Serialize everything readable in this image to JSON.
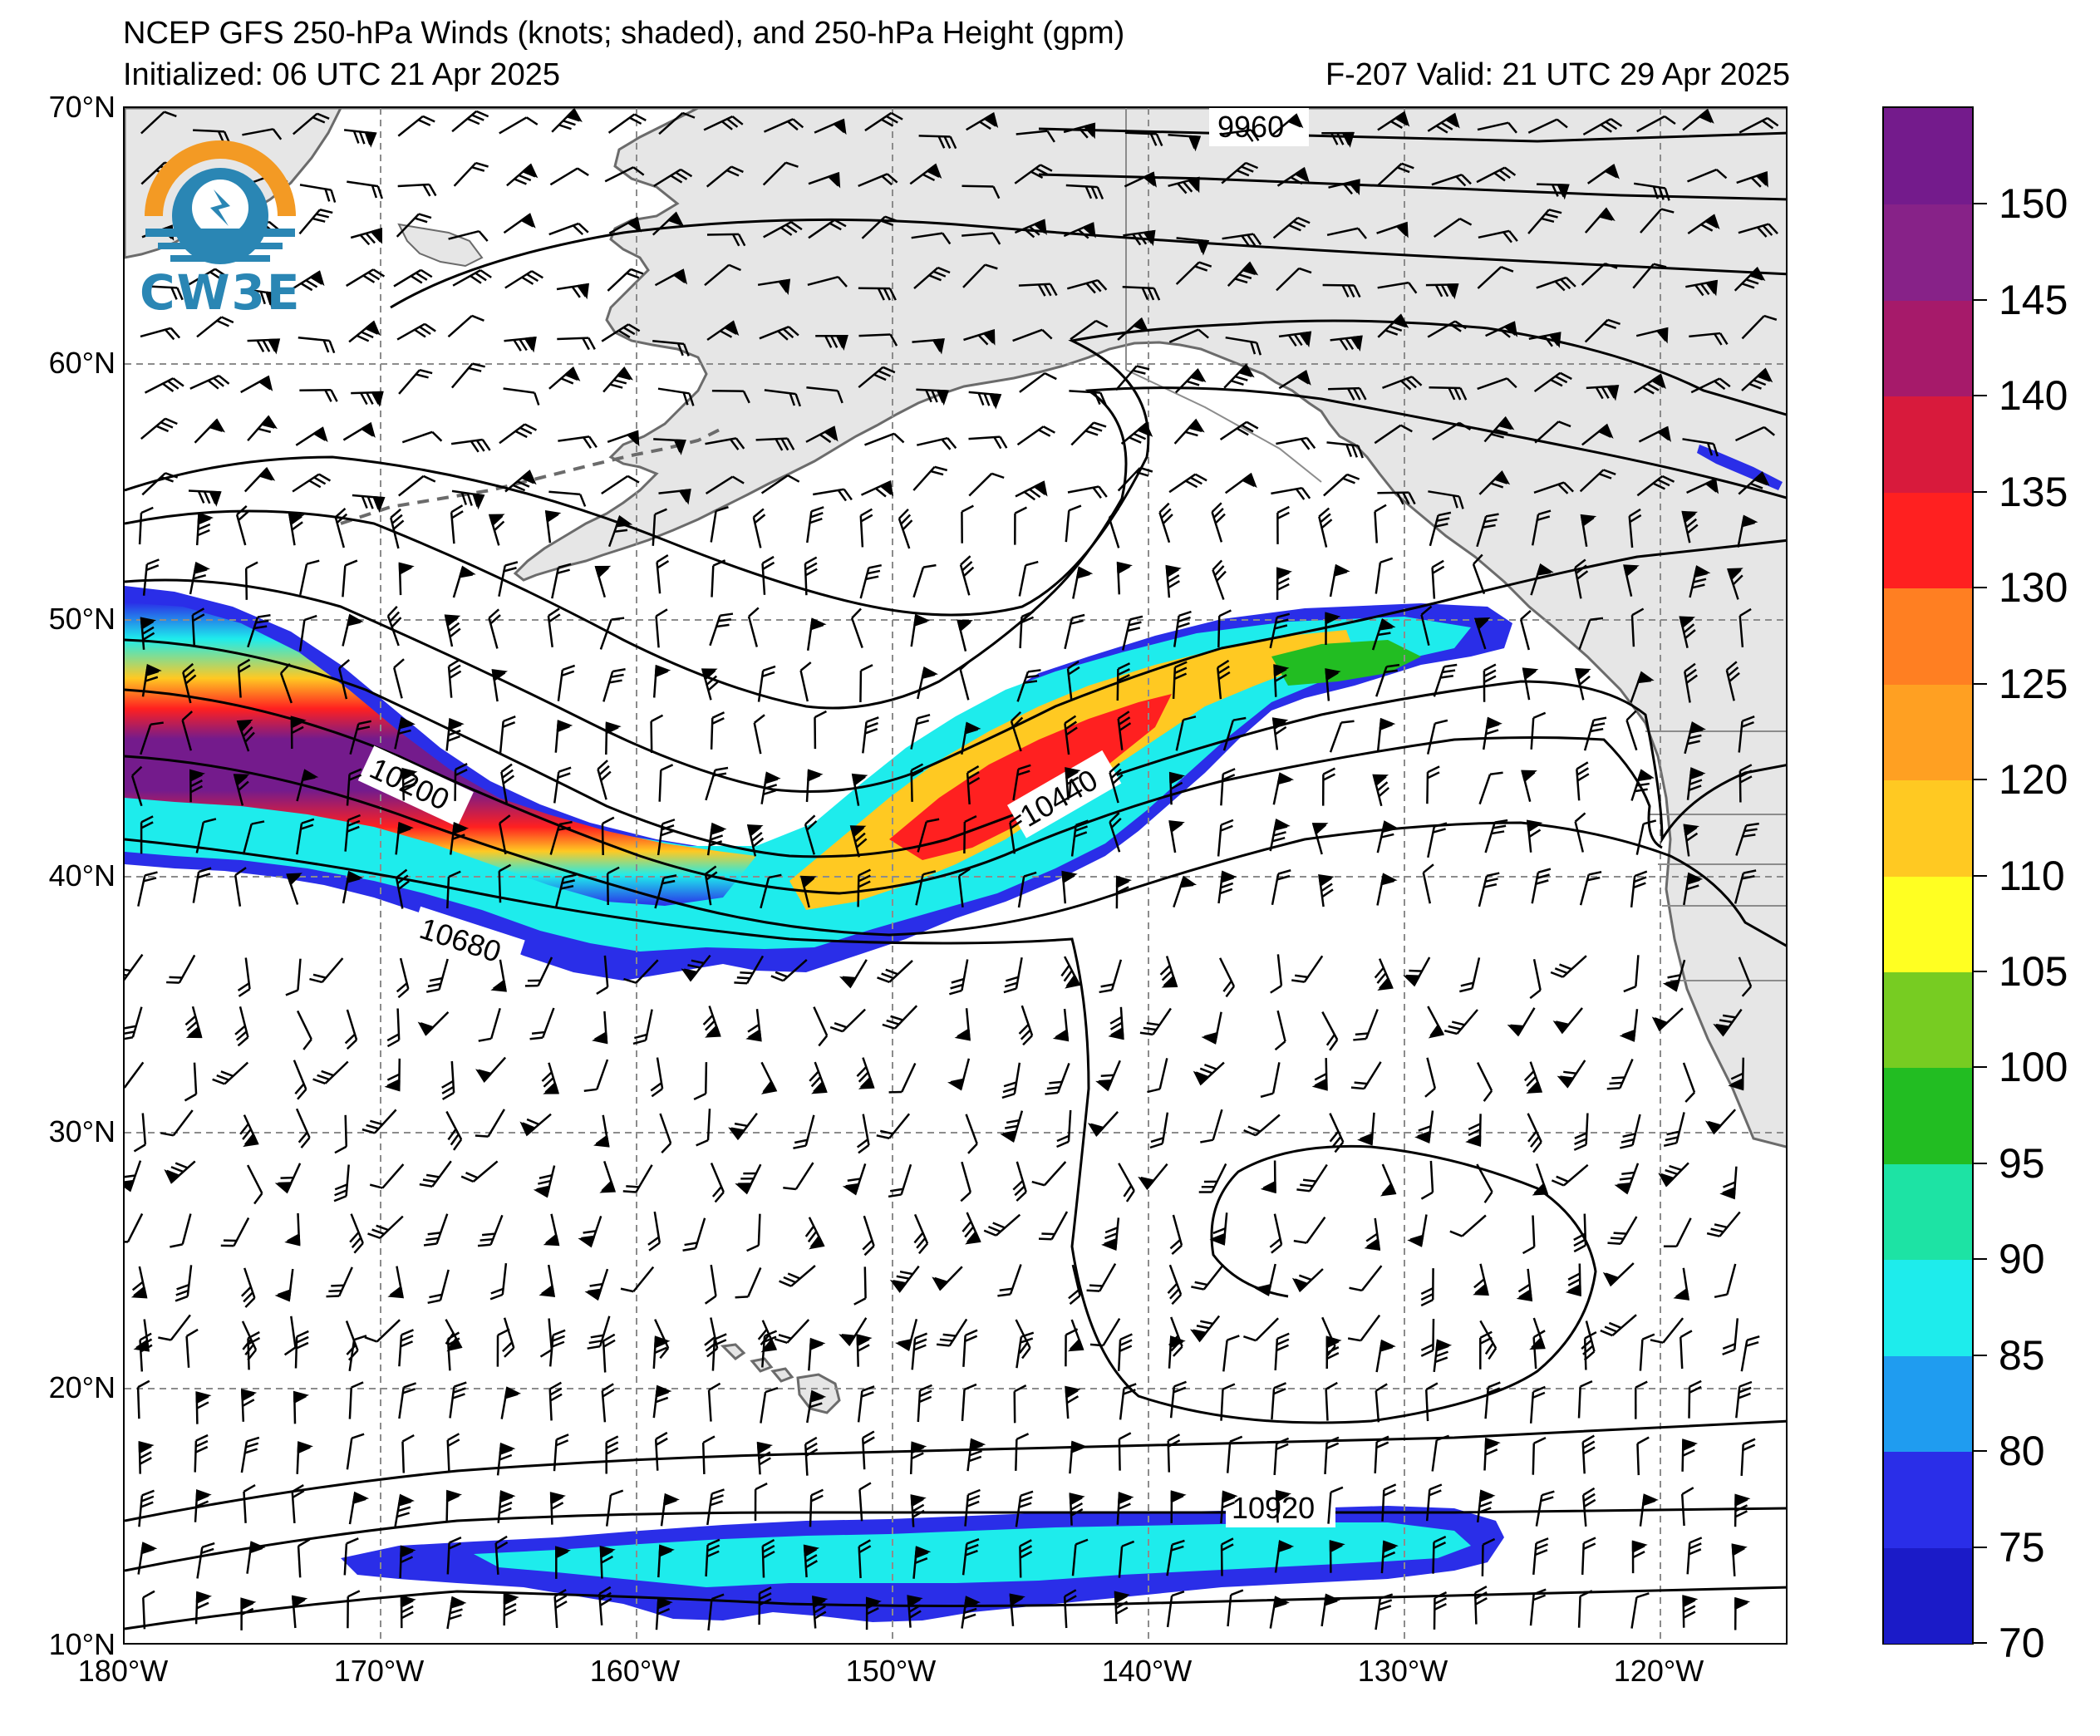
{
  "header": {
    "title": "NCEP GFS 250-hPa Winds (knots; shaded), and 250-hPa Height (gpm)",
    "initialized": "Initialized: 06 UTC 21 Apr 2025",
    "valid": "F-207  Valid: 21 UTC 29 Apr 2025"
  },
  "logo": {
    "text": "CW3E",
    "colors": {
      "sun": "#f39a24",
      "wave": "#2a86b4"
    }
  },
  "map": {
    "projection": "cylindrical",
    "lon_range": [
      -180,
      -115
    ],
    "lat_range": [
      10,
      70
    ],
    "lat_labels": [
      "70°N",
      "60°N",
      "50°N",
      "40°N",
      "30°N",
      "20°N",
      "10°N"
    ],
    "lon_labels": [
      "180°W",
      "170°W",
      "160°W",
      "150°W",
      "140°W",
      "130°W",
      "120°W"
    ],
    "gridlines": "dashed gray every 10°",
    "land_color": "#e6e6e6",
    "contour_labels": [
      "9960",
      "10200",
      "10440",
      "10680",
      "10920"
    ]
  },
  "colorbar": {
    "labels": [
      "150",
      "145",
      "140",
      "135",
      "130",
      "125",
      "120",
      "110",
      "105",
      "100",
      "95",
      "90",
      "85",
      "80",
      "75",
      "70"
    ],
    "colors": [
      "#1b1bc8",
      "#2a2ee8",
      "#1f9cf0",
      "#1eecec",
      "#1de3a4",
      "#22bd22",
      "#77cc22",
      "#ffff22",
      "#ffc922",
      "#ffa022",
      "#ff7f22",
      "#ff2020",
      "#d81a3c",
      "#a61a6a",
      "#872288",
      "#741b8c"
    ]
  }
}
